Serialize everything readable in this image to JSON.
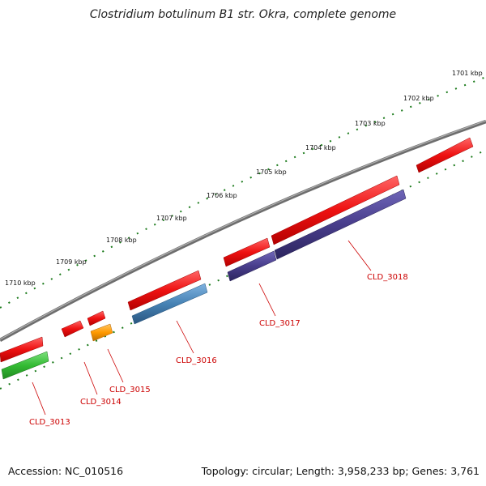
{
  "title": "Clostridium botulinum B1 str. Okra, complete genome",
  "footer": {
    "accession": "Accession: NC_010516",
    "topology": "Topology: circular; Length: 3,958,233 bp; Genes: 3,761"
  },
  "scale": {
    "labels": [
      "1701 kbp",
      "1702 kbp",
      "1703 kbp",
      "1704 kbp",
      "1705 kbp",
      "1706 kbp",
      "1707 kbp",
      "1708 kbp",
      "1709 kbp",
      "1710 kbp"
    ]
  },
  "genes": [
    {
      "label": "CLD_3013"
    },
    {
      "label": "CLD_3014"
    },
    {
      "label": "CLD_3015"
    },
    {
      "label": "CLD_3016"
    },
    {
      "label": "CLD_3017"
    },
    {
      "label": "CLD_3018"
    }
  ],
  "colors": {
    "backbone": "#7a7a7a",
    "cds": "#ee1111",
    "scale_ticks": "#1a7a1a",
    "label": "#cc0000",
    "green": "#33bb33",
    "orange": "#ff9900",
    "steelblue": "#4682b4",
    "purple": "#483d8b"
  }
}
